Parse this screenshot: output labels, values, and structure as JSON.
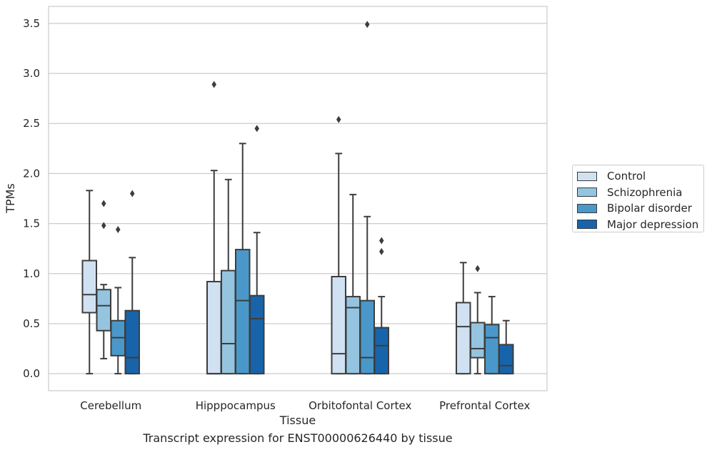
{
  "chart_data": {
    "type": "boxplot",
    "xlabel": "Tissue",
    "ylabel": "TPMs",
    "ylim": [
      -0.17,
      3.67
    ],
    "yticks": [
      0.0,
      0.5,
      1.0,
      1.5,
      2.0,
      2.5,
      3.0,
      3.5
    ],
    "ytick_labels": [
      "0.0",
      "0.5",
      "1.0",
      "1.5",
      "2.0",
      "2.5",
      "3.0",
      "3.5"
    ],
    "grid": "horizontal",
    "legend_position": "right",
    "categories": [
      "Cerebellum",
      "Hipppocampus",
      "Orbitofontal Cortex",
      "Prefrontal Cortex"
    ],
    "series": [
      {
        "name": "Control",
        "color": "#d0e1f2",
        "boxes": [
          {
            "q1": 0.61,
            "median": 0.79,
            "q3": 1.13,
            "whisker_low": 0.0,
            "whisker_high": 1.83,
            "outliers": []
          },
          {
            "q1": 0.0,
            "median": 0.0,
            "q3": 0.92,
            "whisker_low": 0.0,
            "whisker_high": 2.03,
            "outliers": [
              2.89
            ]
          },
          {
            "q1": 0.0,
            "median": 0.2,
            "q3": 0.97,
            "whisker_low": 0.0,
            "whisker_high": 2.2,
            "outliers": [
              2.54
            ]
          },
          {
            "q1": 0.0,
            "median": 0.47,
            "q3": 0.71,
            "whisker_low": 0.0,
            "whisker_high": 1.11,
            "outliers": []
          }
        ]
      },
      {
        "name": "Schizophrenia",
        "color": "#94c4df",
        "boxes": [
          {
            "q1": 0.43,
            "median": 0.68,
            "q3": 0.84,
            "whisker_low": 0.15,
            "whisker_high": 0.89,
            "outliers": [
              1.7,
              1.48
            ]
          },
          {
            "q1": 0.0,
            "median": 0.3,
            "q3": 1.03,
            "whisker_low": 0.0,
            "whisker_high": 1.94,
            "outliers": []
          },
          {
            "q1": 0.0,
            "median": 0.66,
            "q3": 0.77,
            "whisker_low": 0.0,
            "whisker_high": 1.79,
            "outliers": []
          },
          {
            "q1": 0.16,
            "median": 0.25,
            "q3": 0.51,
            "whisker_low": 0.0,
            "whisker_high": 0.81,
            "outliers": [
              1.05
            ]
          }
        ]
      },
      {
        "name": "Bipolar disorder",
        "color": "#4a98c9",
        "boxes": [
          {
            "q1": 0.18,
            "median": 0.36,
            "q3": 0.53,
            "whisker_low": 0.0,
            "whisker_high": 0.86,
            "outliers": [
              1.44
            ]
          },
          {
            "q1": 0.0,
            "median": 0.73,
            "q3": 1.24,
            "whisker_low": 0.0,
            "whisker_high": 2.3,
            "outliers": []
          },
          {
            "q1": 0.0,
            "median": 0.16,
            "q3": 0.73,
            "whisker_low": 0.0,
            "whisker_high": 1.57,
            "outliers": [
              3.49
            ]
          },
          {
            "q1": 0.0,
            "median": 0.36,
            "q3": 0.49,
            "whisker_low": 0.0,
            "whisker_high": 0.77,
            "outliers": []
          }
        ]
      },
      {
        "name": "Major depression",
        "color": "#1764ab",
        "boxes": [
          {
            "q1": 0.0,
            "median": 0.16,
            "q3": 0.63,
            "whisker_low": 0.0,
            "whisker_high": 1.16,
            "outliers": [
              1.8
            ]
          },
          {
            "q1": 0.0,
            "median": 0.55,
            "q3": 0.78,
            "whisker_low": 0.0,
            "whisker_high": 1.41,
            "outliers": [
              2.45
            ]
          },
          {
            "q1": 0.0,
            "median": 0.28,
            "q3": 0.46,
            "whisker_low": 0.0,
            "whisker_high": 0.77,
            "outliers": [
              1.33,
              1.22
            ]
          },
          {
            "q1": 0.0,
            "median": 0.08,
            "q3": 0.29,
            "whisker_low": 0.0,
            "whisker_high": 0.53,
            "outliers": []
          }
        ]
      }
    ],
    "caption": "Transcript expression for ENST00000626440 by tissue"
  }
}
